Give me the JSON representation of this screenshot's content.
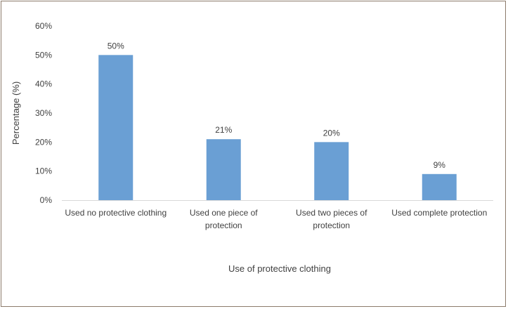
{
  "chart_data": {
    "type": "bar",
    "categories": [
      [
        "Used no protective clothing"
      ],
      [
        "Used one piece of",
        "protection"
      ],
      [
        "Used two pieces of",
        "protection"
      ],
      [
        "Used complete protection"
      ]
    ],
    "values": [
      50,
      21,
      20,
      9
    ],
    "data_labels": [
      "50%",
      "21%",
      "20%",
      "9%"
    ],
    "xlabel": "Use of protective clothing",
    "ylabel": "Percentage (%)",
    "ylim": [
      0,
      60
    ],
    "yticks": [
      0,
      10,
      20,
      30,
      40,
      50,
      60
    ],
    "ytick_labels": [
      "0%",
      "10%",
      "20%",
      "30%",
      "40%",
      "50%",
      "60%"
    ],
    "grid": false,
    "colors": {
      "bar": "#6a9fd4",
      "axis": "#d9d9d9",
      "text": "#404040",
      "border": "#8c7b6b"
    }
  }
}
